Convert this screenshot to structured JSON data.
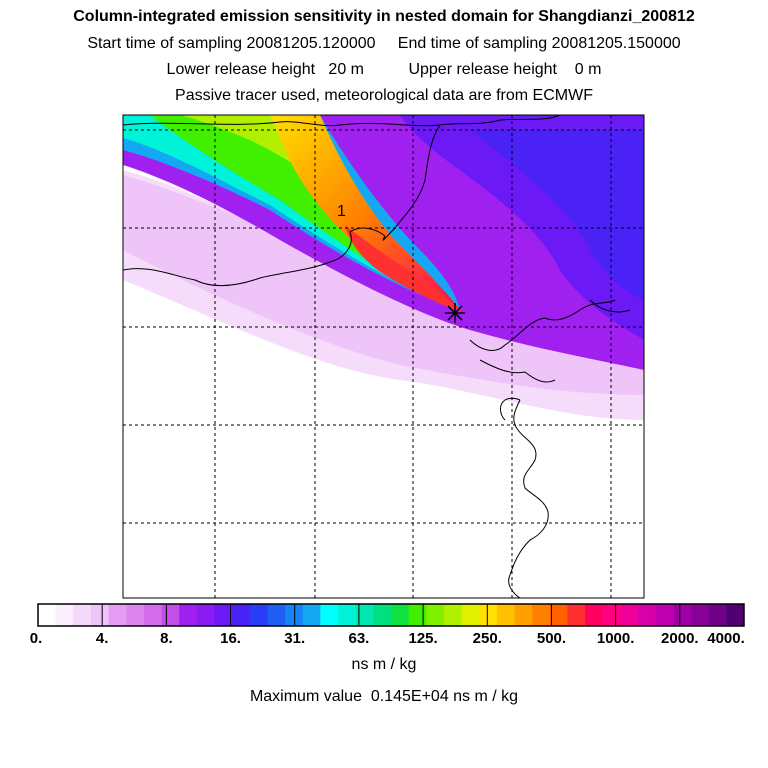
{
  "header": {
    "title": "Column-integrated emission sensitivity in nested domain for Shangdianzi_200812",
    "sampling_line": "Start time of sampling 20081205.120000     End time of sampling 20081205.150000",
    "release_line": "Lower release height   20 m          Upper release height    0 m",
    "tracer_line": "Passive tracer used, meteorological data are from ECMWF"
  },
  "map": {
    "receptor_label": "1",
    "receptor_symbol": "star-marker-icon"
  },
  "colorbar": {
    "tick_labels": [
      "0.",
      "4.",
      "8.",
      "16.",
      "31.",
      "63.",
      "125.",
      "250.",
      "500.",
      "1000.",
      "2000.",
      "4000."
    ],
    "colors": [
      "#ffffff",
      "#fbeefd",
      "#f4d9fb",
      "#eec4f9",
      "#e69cf2",
      "#de86ef",
      "#d36deb",
      "#c44fe8",
      "#a020f0",
      "#8a1bf3",
      "#6b19f5",
      "#4a22f5",
      "#2a3cf5",
      "#1e5ef5",
      "#1784f5",
      "#14a8f3",
      "#00ffff",
      "#00f2d8",
      "#00e8b0",
      "#00e080",
      "#10e040",
      "#40f000",
      "#80f000",
      "#b0f000",
      "#e0f000",
      "#ffe000",
      "#ffc000",
      "#ffa000",
      "#ff8000",
      "#ff6000",
      "#ff3030",
      "#ff0060",
      "#ff0080",
      "#f0009a",
      "#d800a8",
      "#c000b0",
      "#a000a8",
      "#880098",
      "#700088",
      "#500070"
    ],
    "units": "ns m / kg",
    "max_value_label": "Maximum value  0.145E+04 ns m / kg"
  }
}
